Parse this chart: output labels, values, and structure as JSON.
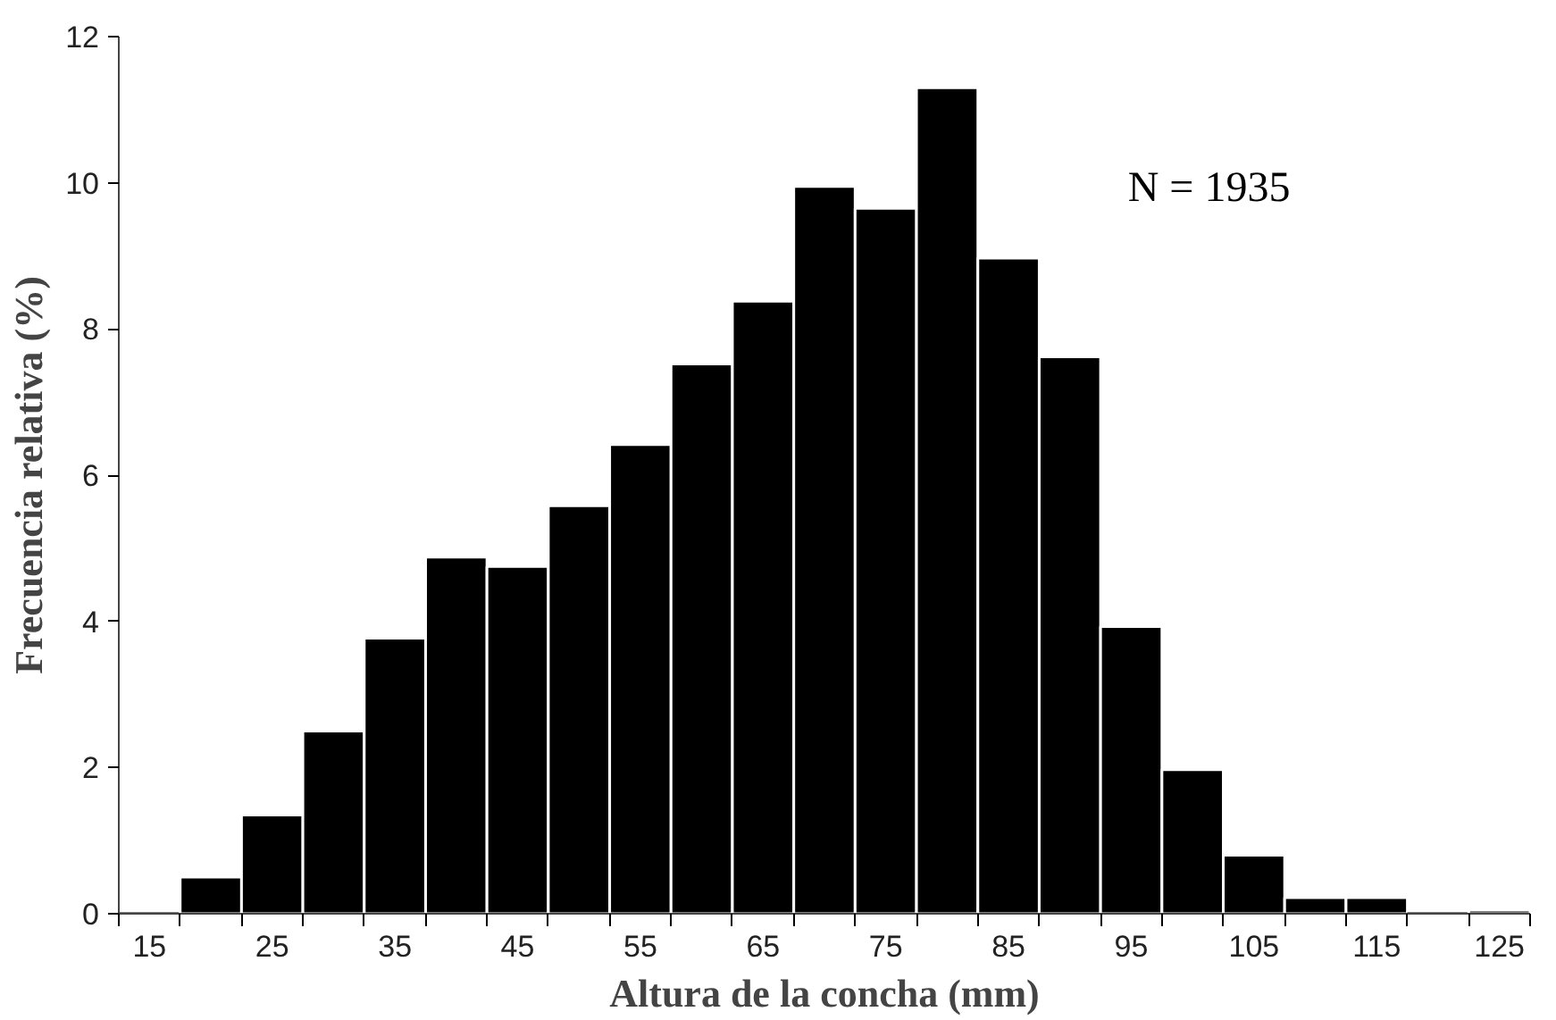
{
  "chart_data": {
    "type": "histogram",
    "xlabel": "Altura de la concha (mm)",
    "ylabel": "Frecuencia relativa (%)",
    "bins": [
      12.5,
      17.5,
      22.5,
      27.5,
      32.5,
      37.5,
      42.5,
      47.5,
      52.5,
      57.5,
      62.5,
      67.5,
      72.5,
      77.5,
      82.5,
      87.5,
      92.5,
      97.5,
      102.5,
      107.5,
      112.5,
      117.5,
      122.5,
      127.5
    ],
    "values": [
      0,
      0.5,
      1.35,
      2.5,
      3.77,
      4.88,
      4.75,
      5.58,
      6.42,
      7.52,
      8.38,
      9.95,
      9.65,
      11.3,
      8.97,
      7.62,
      3.93,
      1.97,
      0.8,
      0.22,
      0.22,
      0,
      0.05
    ],
    "color": "#000000",
    "xlim": [
      12.5,
      127.5
    ],
    "xticks": [
      15,
      25,
      35,
      45,
      55,
      65,
      75,
      85,
      95,
      105,
      115,
      125,
      {
        "value": 12.5,
        "label": null
      },
      {
        "value": 17.5,
        "label": null
      },
      {
        "value": 22.5,
        "label": null
      },
      {
        "value": 27.5,
        "label": null
      },
      {
        "value": 32.5,
        "label": null
      },
      {
        "value": 37.5,
        "label": null
      },
      {
        "value": 42.5,
        "label": null
      },
      {
        "value": 47.5,
        "label": null
      },
      {
        "value": 52.5,
        "label": null
      },
      {
        "value": 57.5,
        "label": null
      },
      {
        "value": 62.5,
        "label": null
      },
      {
        "value": 67.5,
        "label": null
      },
      {
        "value": 72.5,
        "label": null
      },
      {
        "value": 77.5,
        "label": null
      },
      {
        "value": 82.5,
        "label": null
      },
      {
        "value": 87.5,
        "label": null
      },
      {
        "value": 92.5,
        "label": null
      },
      {
        "value": 97.5,
        "label": null
      },
      {
        "value": 102.5,
        "label": null
      },
      {
        "value": 107.5,
        "label": null
      },
      {
        "value": 112.5,
        "label": null
      },
      {
        "value": 117.5,
        "label": null
      },
      {
        "value": 122.5,
        "label": null
      },
      {
        "value": 127.5,
        "label": null
      }
    ],
    "ylim": [
      0,
      12
    ],
    "yticks": [
      0,
      2,
      4,
      6,
      8,
      10,
      12
    ],
    "grid": false,
    "annotations": [
      "N = 1935"
    ]
  }
}
